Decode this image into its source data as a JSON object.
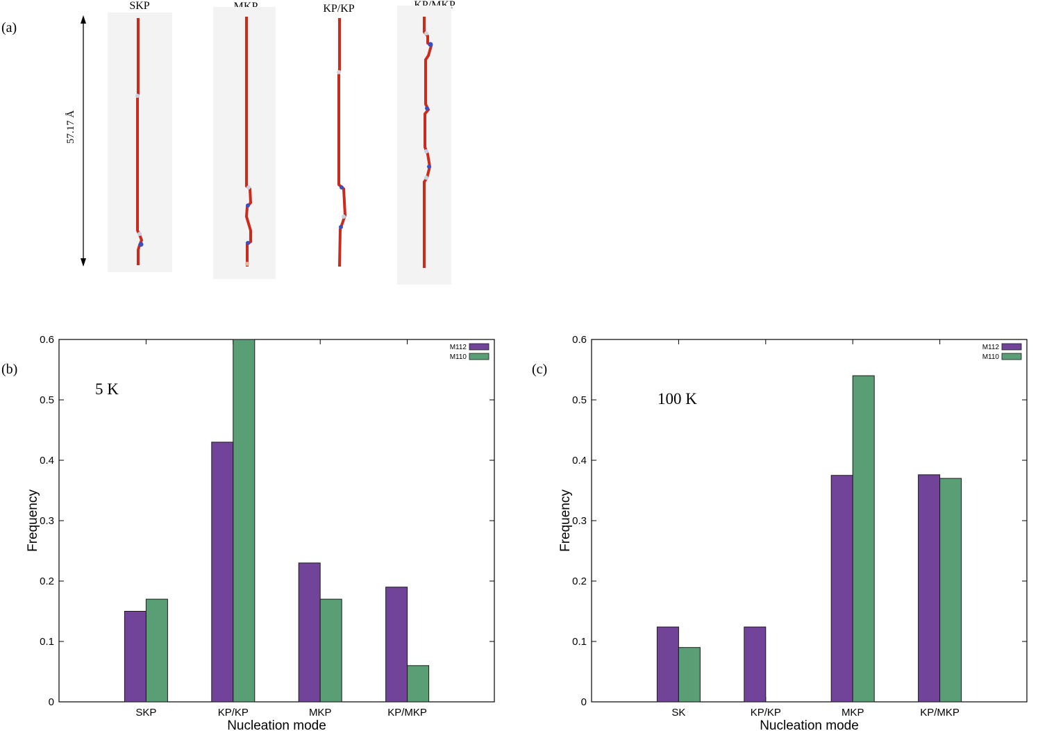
{
  "panel_a": {
    "label": "(a)",
    "length_label": "57.17 Å",
    "columns": [
      {
        "title": "SKP"
      },
      {
        "title": "MKP"
      },
      {
        "title": "KP/KP"
      },
      {
        "title": "KP/MKP"
      }
    ]
  },
  "colors": {
    "M112": "#71449a",
    "M110": "#5a9e75",
    "dislocation_red": "#cc2a1d",
    "kink_blue": "#3a4fc0",
    "panel_bg": "#f3f3f3"
  },
  "chart_data": [
    {
      "type": "bar",
      "panel_label": "(b)",
      "annotation": "5 K",
      "categories": [
        "SKP",
        "KP/KP",
        "MKP",
        "KP/MKP"
      ],
      "series": [
        {
          "name": "M112",
          "values": [
            0.15,
            0.43,
            0.23,
            0.19
          ]
        },
        {
          "name": "M110",
          "values": [
            0.17,
            0.6,
            0.17,
            0.06
          ]
        }
      ],
      "xlabel": "Nucleation mode",
      "ylabel": "Frequency",
      "ylim": [
        0,
        0.6
      ],
      "yticks": [
        "0",
        "0.1",
        "0.2",
        "0.3",
        "0.4",
        "0.5",
        "0.6"
      ],
      "legend": "top-right",
      "grid": false
    },
    {
      "type": "bar",
      "panel_label": "(c)",
      "annotation": "100 K",
      "categories": [
        "SK",
        "KP/KP",
        "MKP",
        "KP/MKP"
      ],
      "series": [
        {
          "name": "M112",
          "values": [
            0.124,
            0.124,
            0.375,
            0.376
          ]
        },
        {
          "name": "M110",
          "values": [
            0.09,
            0,
            0.54,
            0.37
          ]
        }
      ],
      "xlabel": "Nucleation mode",
      "ylabel": "Frequency",
      "ylim": [
        0,
        0.6
      ],
      "yticks": [
        "0",
        "0.1",
        "0.2",
        "0.3",
        "0.4",
        "0.5",
        "0.6"
      ],
      "legend": "top-right",
      "grid": false
    }
  ]
}
